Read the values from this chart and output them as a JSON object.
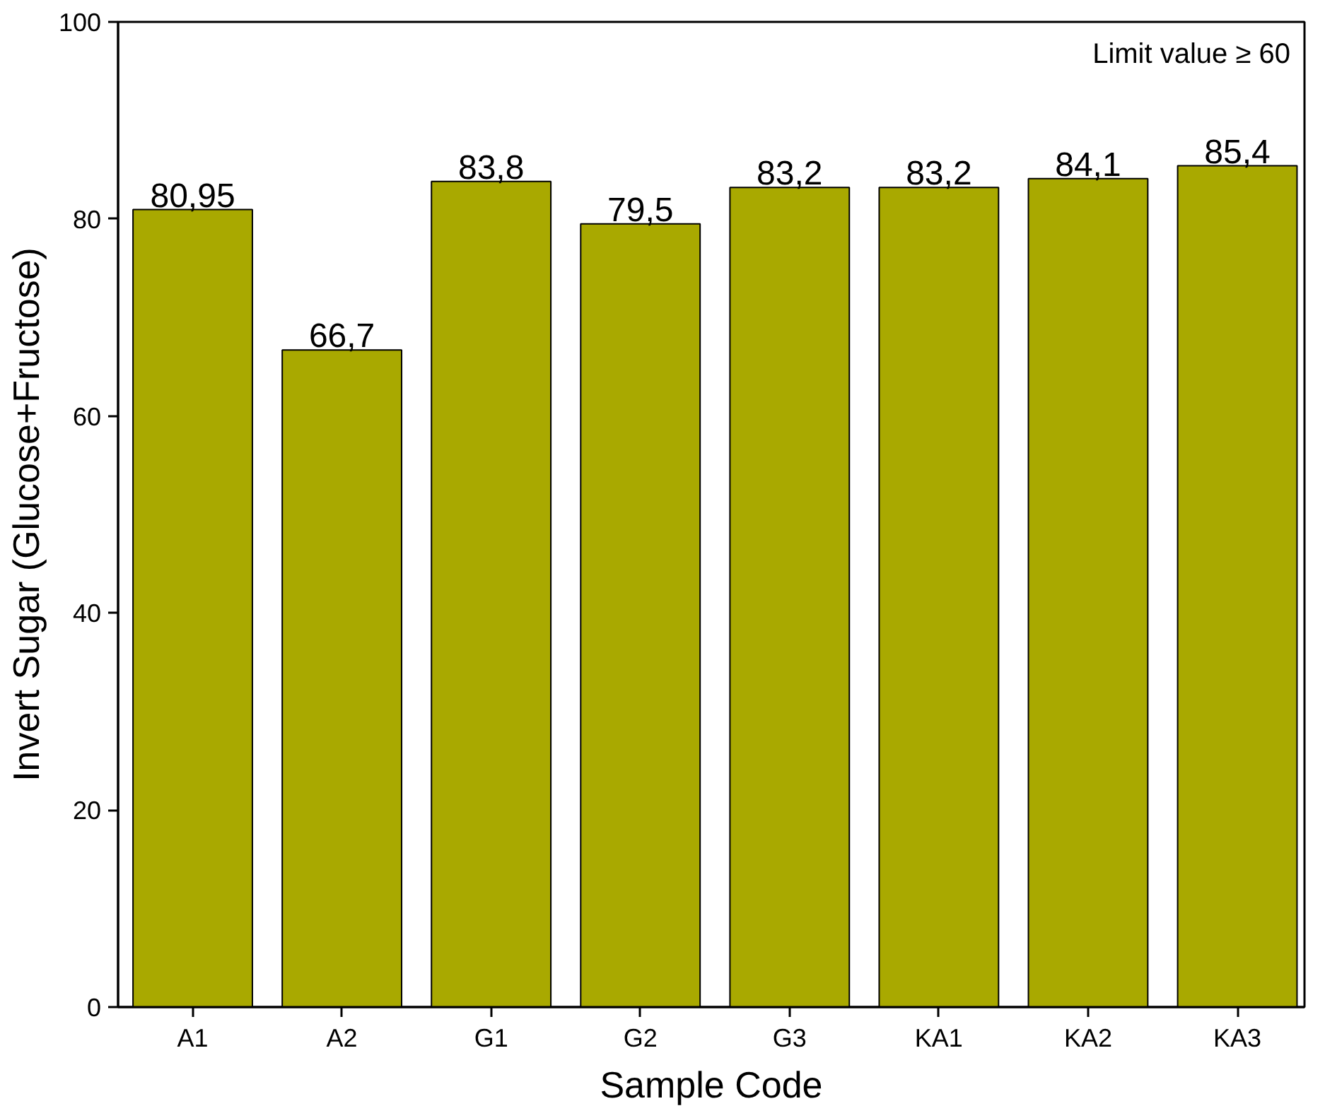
{
  "chart_data": {
    "type": "bar",
    "xlabel": "Sample Code",
    "ylabel": "Invert Sugar (Glucose+Fructose)",
    "categories": [
      "A1",
      "A2",
      "G1",
      "G2",
      "G3",
      "KA1",
      "KA2",
      "KA3"
    ],
    "values": [
      80.95,
      66.7,
      83.8,
      79.5,
      83.2,
      83.2,
      84.1,
      85.4
    ],
    "value_labels": [
      "80,95",
      "66,7",
      "83,8",
      "79,5",
      "83,2",
      "83,2",
      "84,1",
      "85,4"
    ],
    "color": "#a9a900",
    "ylim": [
      0,
      100
    ],
    "yticks": [
      0,
      20,
      40,
      60,
      80,
      100
    ],
    "annotations": [
      "Limit value ≥ 60"
    ]
  }
}
